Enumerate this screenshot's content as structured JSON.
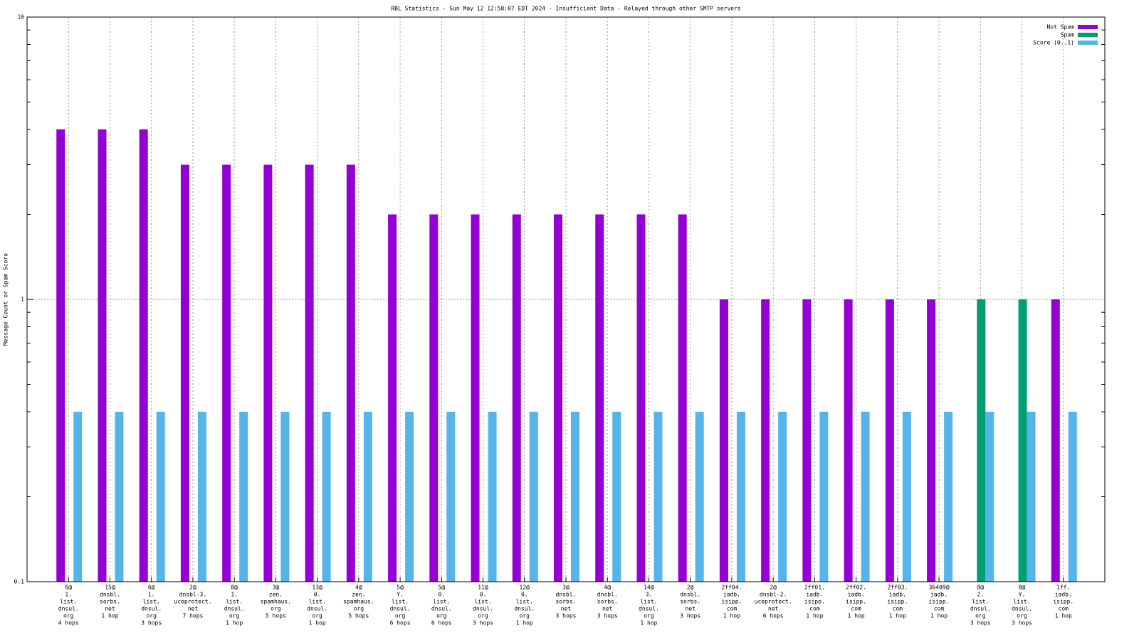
{
  "chart_data": {
    "type": "bar",
    "title": "RBL Statistics - Sun May 12 12:58:07 EDT 2024 - Insufficient Data - Relayed through other SMTP servers",
    "ylabel": "Message Count or Spam Score",
    "log_y": true,
    "grid": true,
    "legend": "top-right",
    "ylim": [
      0.1,
      10
    ],
    "yticks": [
      0.1,
      1,
      10
    ],
    "categories": [
      [
        "6@",
        "1.",
        "list.",
        "dnsul.",
        "org",
        "4 hops"
      ],
      [
        "15@",
        "dnsbl.",
        "sorbs.",
        "net",
        "1 hop"
      ],
      [
        "6@",
        "1.",
        "list.",
        "dnsul.",
        "org",
        "3 hops"
      ],
      [
        "2@",
        "dnsbl-3.",
        "uceprotect.",
        "net",
        "7 hops"
      ],
      [
        "8@",
        "1.",
        "list.",
        "dnsul.",
        "org",
        "1 hop"
      ],
      [
        "3@",
        "zen.",
        "spamhaus.",
        "org",
        "5 hops"
      ],
      [
        "13@",
        "0.",
        "list.",
        "dnsul.",
        "org",
        "1 hop"
      ],
      [
        "4@",
        "zen.",
        "spamhaus.",
        "org",
        "5 hops"
      ],
      [
        "5@",
        "Y.",
        "list.",
        "dnsul.",
        "org",
        "6 hops"
      ],
      [
        "5@",
        "0.",
        "list.",
        "dnsul.",
        "org",
        "6 hops"
      ],
      [
        "11@",
        "0.",
        "list.",
        "dnsul.",
        "org",
        "3 hops"
      ],
      [
        "12@",
        "0.",
        "list.",
        "dnsul.",
        "org",
        "1 hop"
      ],
      [
        "3@",
        "dnsbl.",
        "sorbs.",
        "net",
        "3 hops"
      ],
      [
        "4@",
        "dnsbl.",
        "sorbs.",
        "net",
        "3 hops"
      ],
      [
        "14@",
        "3.",
        "list.",
        "dnsul.",
        "org",
        "1 hop"
      ],
      [
        "2@",
        "dnsbl.",
        "sorbs.",
        "net",
        "3 hops"
      ],
      [
        "2ff04.",
        "iadb.",
        "isipp.",
        "com",
        "1 hop"
      ],
      [
        "2@",
        "dnsbl-2.",
        "uceprotect.",
        "net",
        "6 hops"
      ],
      [
        "2ff01.",
        "iadb.",
        "isipp.",
        "com",
        "1 hop"
      ],
      [
        "2ff02.",
        "iadb.",
        "isipp.",
        "com",
        "1 hop"
      ],
      [
        "2ff03.",
        "iadb.",
        "isipp.",
        "com",
        "1 hop"
      ],
      [
        "36409@",
        "iadb.",
        "isipp.",
        "com",
        "1 hop"
      ],
      [
        "8@",
        "2.",
        "list.",
        "dnsul.",
        "org",
        "3 hops"
      ],
      [
        "8@",
        "Y.",
        "list.",
        "dnsul.",
        "org",
        "3 hops"
      ],
      [
        "1ff.",
        "iadb.",
        "isipp.",
        "com",
        "1 hop"
      ]
    ],
    "series": [
      {
        "name": "Not Spam",
        "color": "#9400d3",
        "values": [
          4,
          4,
          4,
          3,
          3,
          3,
          3,
          3,
          2,
          2,
          2,
          2,
          2,
          2,
          2,
          2,
          1,
          1,
          1,
          1,
          1,
          1,
          null,
          null,
          1
        ]
      },
      {
        "name": "Spam",
        "color": "#009e73",
        "values": [
          null,
          null,
          null,
          null,
          null,
          null,
          null,
          null,
          null,
          null,
          null,
          null,
          null,
          null,
          null,
          null,
          null,
          null,
          null,
          null,
          null,
          null,
          1,
          1,
          null
        ]
      },
      {
        "name": "Score (0..1)",
        "color": "#56b4e9",
        "values": [
          0.4,
          0.4,
          0.4,
          0.4,
          0.4,
          0.4,
          0.4,
          0.4,
          0.4,
          0.4,
          0.4,
          0.4,
          0.4,
          0.4,
          0.4,
          0.4,
          0.4,
          0.4,
          0.4,
          0.4,
          0.4,
          0.4,
          0.4,
          0.4,
          0.4
        ]
      }
    ]
  }
}
